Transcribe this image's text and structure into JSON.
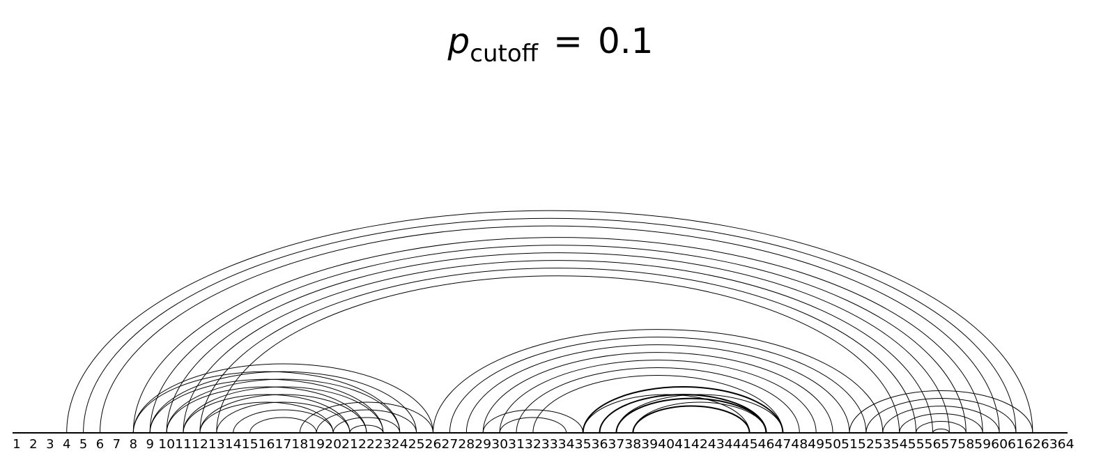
{
  "title": {
    "symbol": "p",
    "subscript": "cutoff",
    "relation": "=",
    "value": "0.1"
  },
  "chart_data": {
    "type": "arc-diagram",
    "nodes": [
      1,
      2,
      3,
      4,
      5,
      6,
      7,
      8,
      9,
      10,
      11,
      12,
      13,
      14,
      15,
      16,
      17,
      18,
      19,
      20,
      21,
      22,
      23,
      24,
      25,
      26,
      27,
      28,
      29,
      30,
      31,
      32,
      33,
      34,
      35,
      36,
      37,
      38,
      39,
      40,
      41,
      42,
      43,
      44,
      45,
      46,
      47,
      48,
      49,
      50,
      51,
      52,
      53,
      54,
      55,
      56,
      57,
      58,
      59,
      60,
      61,
      62,
      63,
      64
    ],
    "arcs": [
      [
        4,
        62
      ],
      [
        5,
        61
      ],
      [
        6,
        60
      ],
      [
        8,
        59
      ],
      [
        9,
        58
      ],
      [
        10,
        57
      ],
      [
        11,
        56
      ],
      [
        12,
        55
      ],
      [
        13,
        54
      ],
      [
        8,
        26
      ],
      [
        9,
        25
      ],
      [
        10,
        24
      ],
      [
        11,
        23
      ],
      [
        12,
        22
      ],
      [
        13,
        21
      ],
      [
        14,
        20
      ],
      [
        15,
        19
      ],
      [
        8,
        24
      ],
      [
        9,
        23
      ],
      [
        10,
        22
      ],
      [
        11,
        21
      ],
      [
        12,
        20
      ],
      [
        18,
        26
      ],
      [
        19,
        25
      ],
      [
        20,
        24
      ],
      [
        21,
        23
      ],
      [
        26,
        53
      ],
      [
        27,
        52
      ],
      [
        28,
        51
      ],
      [
        29,
        50
      ],
      [
        30,
        49
      ],
      [
        31,
        48
      ],
      [
        32,
        47
      ],
      [
        30,
        34
      ],
      [
        29,
        35
      ],
      [
        35,
        45
      ],
      [
        36,
        46
      ],
      [
        37,
        47
      ],
      [
        38,
        46
      ],
      [
        51,
        62
      ],
      [
        52,
        61
      ],
      [
        53,
        60
      ],
      [
        54,
        59
      ],
      [
        55,
        58
      ],
      [
        56,
        57
      ]
    ],
    "bold_arcs": [
      [
        35,
        47
      ],
      [
        36,
        46
      ],
      [
        37,
        46
      ],
      [
        38,
        45
      ]
    ]
  }
}
